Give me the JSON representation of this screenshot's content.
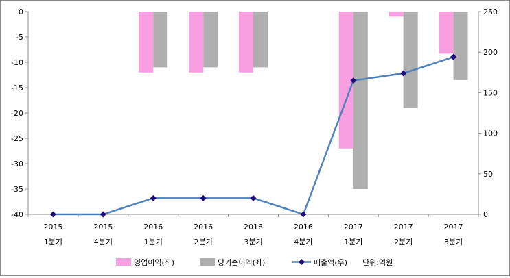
{
  "chart_data": {
    "type": "bar+line",
    "categories": [
      [
        "2015",
        "1분기"
      ],
      [
        "2015",
        "4분기"
      ],
      [
        "2016",
        "1분기"
      ],
      [
        "2016",
        "2분기"
      ],
      [
        "2016",
        "3분기"
      ],
      [
        "2016",
        "4분기"
      ],
      [
        "2017",
        "1분기"
      ],
      [
        "2017",
        "2분기"
      ],
      [
        "2017",
        "3분기"
      ]
    ],
    "left_axis": {
      "ylim": [
        -40,
        0
      ],
      "ticks": [
        0,
        -5,
        -10,
        -15,
        -20,
        -25,
        -30,
        -35,
        -40
      ]
    },
    "right_axis": {
      "ylim": [
        0,
        250
      ],
      "ticks": [
        0,
        50,
        100,
        150,
        200,
        250
      ]
    },
    "series": [
      {
        "name": "영업이익(좌)",
        "type": "bar",
        "axis": "left",
        "color": "#f79fe0",
        "values": [
          0,
          0,
          -12,
          -12,
          -12,
          0,
          -27,
          -1,
          -8.3
        ]
      },
      {
        "name": "당기순이익(좌)",
        "type": "bar",
        "axis": "left",
        "color": "#afafaf",
        "values": [
          0,
          0,
          -11,
          -11,
          -11,
          0,
          -35,
          -19,
          -13.5
        ]
      },
      {
        "name": "매출액(우)",
        "type": "line",
        "axis": "right",
        "color": "#4f81bd",
        "marker_color": "#1f0a7a",
        "values": [
          0,
          0,
          20,
          20,
          20,
          0,
          165,
          174,
          194
        ]
      }
    ],
    "legend_note": "단위:억원",
    "grid": false,
    "legend_position": "bottom"
  }
}
